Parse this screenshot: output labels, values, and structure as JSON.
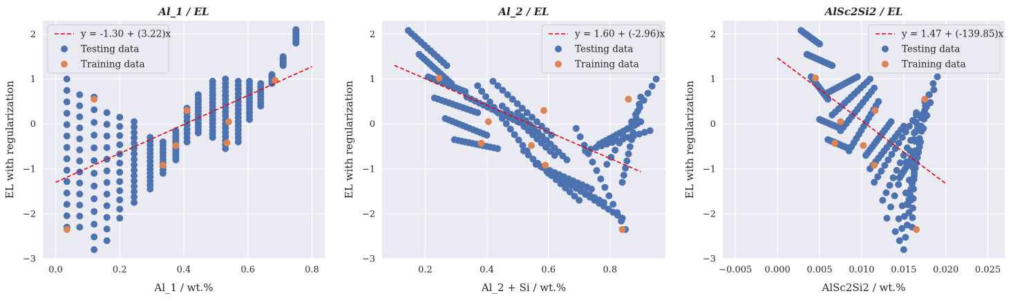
{
  "figure": {
    "background": "#ffffff",
    "axes_facecolor": "#eaeaf2",
    "grid_color": "#ffffff",
    "testing_color": "#4c72b0",
    "training_color": "#dd8452",
    "fit_color": "#e8000b"
  },
  "chart_data": [
    {
      "type": "scatter",
      "title": "Al_1 / EL",
      "xlabel": "Al_1 / wt.%",
      "ylabel": "EL with regularization",
      "xlim": [
        -0.04,
        0.84
      ],
      "ylim": [
        -3,
        2.3
      ],
      "xticks": [
        0.0,
        0.2,
        0.4,
        0.6,
        0.8
      ],
      "xtick_labels": [
        "0.0",
        "0.2",
        "0.4",
        "0.6",
        "0.8"
      ],
      "yticks": [
        -3,
        -2,
        -1,
        0,
        1,
        2
      ],
      "ytick_labels": [
        "−3",
        "−2",
        "−1",
        "0",
        "1",
        "2"
      ],
      "grid": true,
      "legend_position": "top-left",
      "fit": {
        "label": "y = -1.30 + (3.22)x",
        "intercept": -1.3,
        "slope": 3.22,
        "x_range": [
          0.0,
          0.8
        ]
      },
      "series": [
        {
          "name": "Testing data",
          "role": "testing",
          "columns": [
            [
              0.035,
              -2.3,
              1.0,
              0.26
            ],
            [
              0.075,
              -2.3,
              0.65,
              0.25
            ],
            [
              0.12,
              -2.8,
              0.6,
              0.28
            ],
            [
              0.16,
              -2.6,
              0.25,
              0.25
            ],
            [
              0.2,
              -2.1,
              0.15,
              0.2
            ],
            [
              0.245,
              -1.75,
              0.05,
              0.12
            ],
            [
              0.295,
              -1.45,
              -0.3,
              0.09
            ],
            [
              0.335,
              -1.1,
              -0.4,
              0.08
            ],
            [
              0.375,
              -0.8,
              -0.15,
              0.05
            ],
            [
              0.41,
              -0.4,
              0.35,
              0.1
            ],
            [
              0.445,
              -0.2,
              0.65,
              0.07
            ],
            [
              0.49,
              -0.3,
              0.95,
              0.08
            ],
            [
              0.53,
              -0.55,
              1.0,
              0.09
            ],
            [
              0.57,
              -0.4,
              0.95,
              0.09
            ],
            [
              0.605,
              0.1,
              0.95,
              0.08
            ],
            [
              0.64,
              0.4,
              0.9,
              0.07
            ],
            [
              0.675,
              0.9,
              1.1,
              0.04
            ],
            [
              0.71,
              1.3,
              1.5,
              0.03
            ],
            [
              0.75,
              1.8,
              2.1,
              0.03
            ]
          ]
        },
        {
          "name": "Training data",
          "role": "training",
          "points": [
            [
              0.035,
              -2.35
            ],
            [
              0.12,
              0.55
            ],
            [
              0.335,
              -0.92
            ],
            [
              0.375,
              -0.48
            ],
            [
              0.41,
              0.3
            ],
            [
              0.535,
              -0.42
            ],
            [
              0.54,
              0.05
            ],
            [
              0.685,
              0.97
            ]
          ]
        }
      ]
    },
    {
      "type": "scatter",
      "title": "Al_2 / EL",
      "xlabel": "Al_2 + Si / wt.%",
      "ylabel": "EL with regularization",
      "xlim": [
        0.06,
        0.98
      ],
      "ylim": [
        -3,
        2.3
      ],
      "xticks": [
        0.2,
        0.4,
        0.6,
        0.8
      ],
      "xtick_labels": [
        "0.2",
        "0.4",
        "0.6",
        "0.8"
      ],
      "yticks": [
        -3,
        -2,
        -1,
        0,
        1,
        2
      ],
      "ytick_labels": [
        "−3",
        "−2",
        "−1",
        "0",
        "1",
        "2"
      ],
      "grid": true,
      "legend_position": "top-right",
      "fit": {
        "label": "y = 1.60 + (-2.96)x",
        "intercept": 1.6,
        "slope": -2.96,
        "x_range": [
          0.1,
          0.9
        ]
      },
      "series": [
        {
          "name": "Testing data",
          "role": "testing",
          "bands": [
            [
              0.145,
              2.08,
              0.27,
              1.3
            ],
            [
              0.18,
              1.55,
              0.285,
              0.9
            ],
            [
              0.21,
              1.05,
              0.33,
              0.72
            ],
            [
              0.23,
              0.58,
              0.37,
              0.25
            ],
            [
              0.265,
              0.12,
              0.4,
              -0.25
            ],
            [
              0.295,
              -0.35,
              0.435,
              -0.55
            ],
            [
              0.335,
              0.6,
              0.5,
              0.05
            ],
            [
              0.37,
              0.85,
              0.53,
              -0.6
            ],
            [
              0.42,
              0.95,
              0.61,
              -0.25
            ],
            [
              0.45,
              0.4,
              0.62,
              -0.7
            ],
            [
              0.5,
              0.25,
              0.66,
              -0.8
            ],
            [
              0.52,
              -0.6,
              0.7,
              -1.7
            ],
            [
              0.56,
              -0.9,
              0.74,
              -1.45
            ],
            [
              0.6,
              -1.1,
              0.78,
              -1.75
            ],
            [
              0.66,
              -1.3,
              0.84,
              -2.1
            ],
            [
              0.69,
              -0.1,
              0.85,
              -2.35
            ],
            [
              0.72,
              -0.6,
              0.93,
              -0.15
            ],
            [
              0.765,
              -0.45,
              0.9,
              0.05
            ],
            [
              0.79,
              -0.9,
              0.95,
              1.0
            ],
            [
              0.84,
              -1.3,
              0.9,
              0.6
            ]
          ]
        },
        {
          "name": "Training data",
          "role": "training",
          "points": [
            [
              0.245,
              1.02
            ],
            [
              0.382,
              -0.43
            ],
            [
              0.405,
              0.05
            ],
            [
              0.545,
              -0.48
            ],
            [
              0.585,
              0.3
            ],
            [
              0.59,
              -0.92
            ],
            [
              0.84,
              -2.35
            ],
            [
              0.86,
              0.55
            ]
          ]
        }
      ]
    },
    {
      "type": "scatter",
      "title": "AlSc2Si2 / EL",
      "xlabel": "AlSc2Si2 / wt.%",
      "ylabel": "EL with regularization",
      "xlim": [
        -0.0065,
        0.027
      ],
      "ylim": [
        -3,
        2.3
      ],
      "xticks": [
        -0.005,
        0.0,
        0.005,
        0.01,
        0.015,
        0.02,
        0.025
      ],
      "xtick_labels": [
        "−0.005",
        "0.000",
        "0.005",
        "0.010",
        "0.015",
        "0.020",
        "0.025"
      ],
      "yticks": [
        -3,
        -2,
        -1,
        0,
        1,
        2
      ],
      "ytick_labels": [
        "−3",
        "−2",
        "−1",
        "0",
        "1",
        "2"
      ],
      "grid": true,
      "legend_position": "top-right",
      "fit": {
        "label": "y = 1.47 + (-139.85)x",
        "intercept": 1.47,
        "slope": -139.85,
        "x_range": [
          0.0,
          0.02
        ]
      },
      "series": [
        {
          "name": "Testing data",
          "role": "testing",
          "bands": [
            [
              0.0028,
              2.08,
              0.005,
              1.78
            ],
            [
              0.0035,
              1.55,
              0.0065,
              1.3
            ],
            [
              0.004,
              1.05,
              0.006,
              0.55
            ],
            [
              0.005,
              0.1,
              0.0075,
              -0.1
            ],
            [
              0.006,
              -0.35,
              0.0085,
              -0.55
            ],
            [
              0.006,
              0.7,
              0.0095,
              1.05
            ],
            [
              0.0065,
              0.2,
              0.011,
              1.0
            ],
            [
              0.0075,
              -0.15,
              0.0115,
              0.8
            ],
            [
              0.0085,
              -0.6,
              0.012,
              0.5
            ],
            [
              0.0105,
              -0.7,
              0.0135,
              0.05
            ],
            [
              0.011,
              -1.0,
              0.015,
              -0.05
            ],
            [
              0.0115,
              -1.3,
              0.0165,
              0.2
            ],
            [
              0.0125,
              -1.7,
              0.0175,
              0.3
            ],
            [
              0.013,
              -2.1,
              0.0185,
              0.9
            ],
            [
              0.014,
              -2.4,
              0.019,
              1.05
            ],
            [
              0.0145,
              -2.6,
              0.018,
              0.65
            ],
            [
              0.015,
              -2.8,
              0.0175,
              0.5
            ],
            [
              0.0155,
              -1.8,
              0.017,
              -0.4
            ],
            [
              0.016,
              -2.3,
              0.0165,
              0.25
            ],
            [
              0.0145,
              -1.2,
              0.0165,
              -0.6
            ]
          ]
        },
        {
          "name": "Training data",
          "role": "training",
          "points": [
            [
              0.0045,
              1.02
            ],
            [
              0.0075,
              0.05
            ],
            [
              0.0068,
              -0.43
            ],
            [
              0.0102,
              -0.48
            ],
            [
              0.0116,
              0.3
            ],
            [
              0.0115,
              -0.92
            ],
            [
              0.0165,
              -2.35
            ],
            [
              0.0175,
              0.55
            ]
          ]
        }
      ]
    }
  ]
}
